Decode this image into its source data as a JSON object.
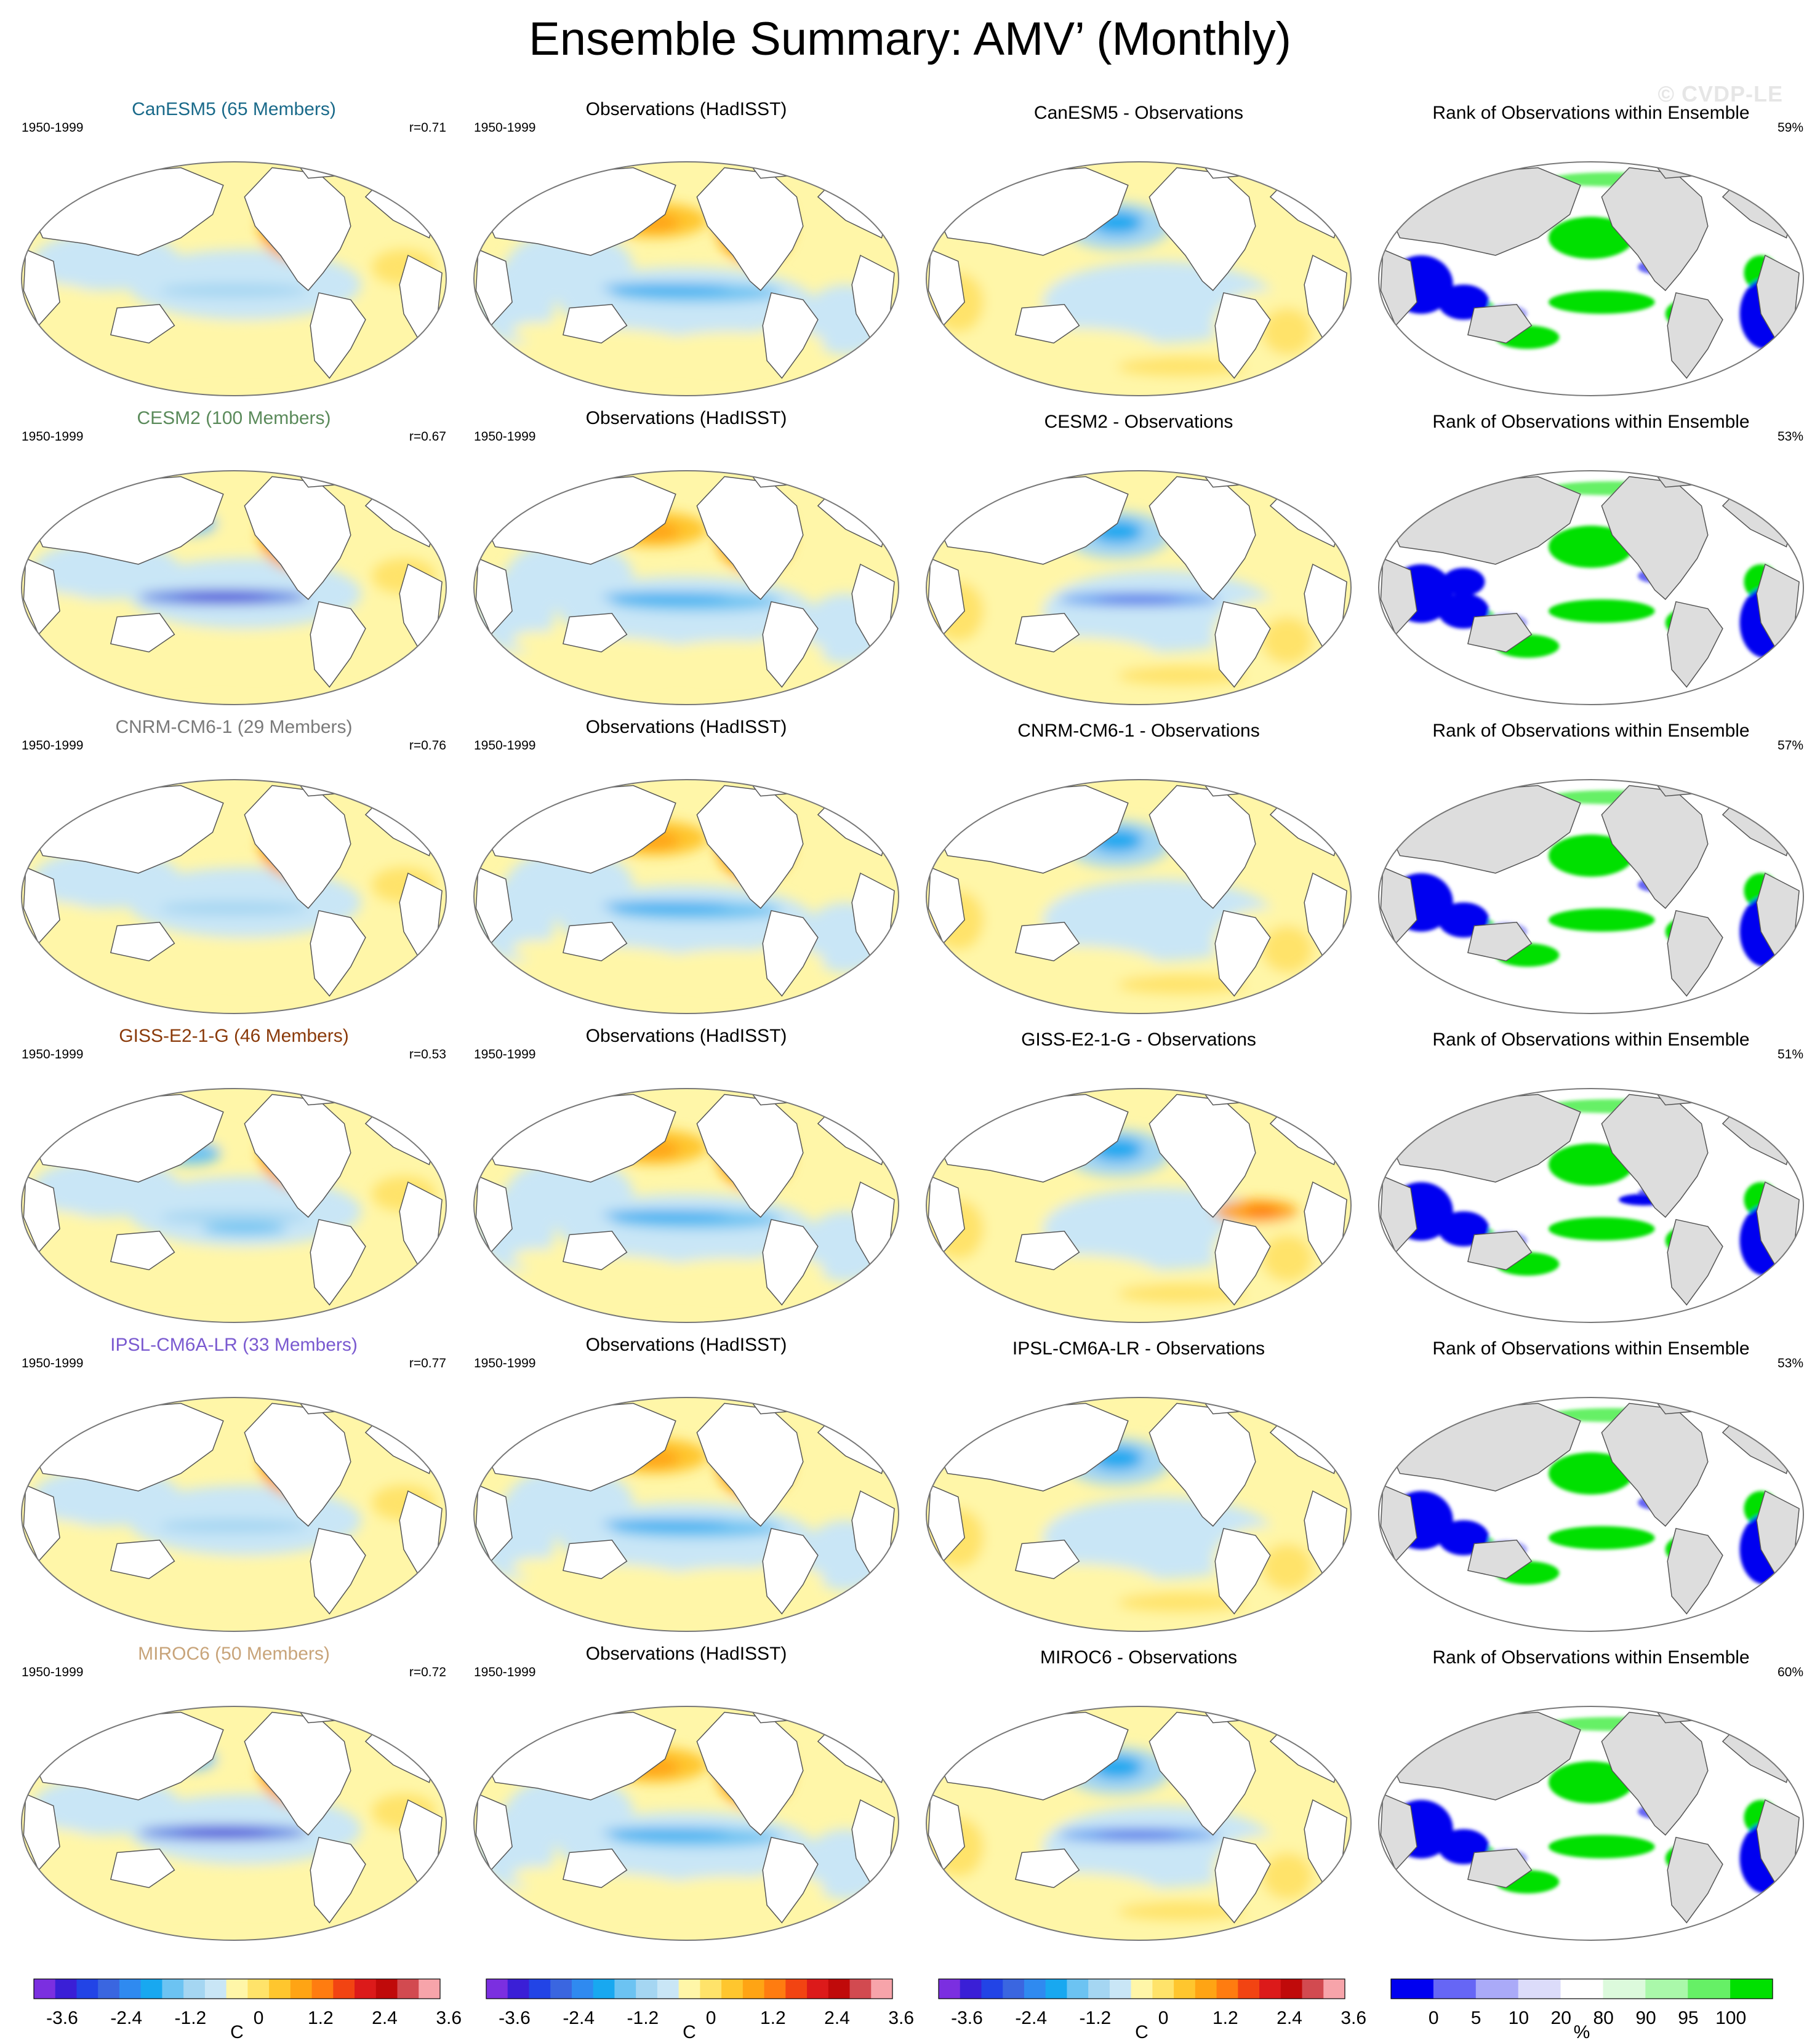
{
  "title": "Ensemble Summary: AMV’ (Monthly)",
  "watermark": "© CVDP-LE",
  "colors": {
    "temp_scale": [
      "#7b2fe0",
      "#3a1fd6",
      "#2244e6",
      "#3a66e0",
      "#2f8af0",
      "#18a8f0",
      "#6cc3f2",
      "#a5d6f2",
      "#c9e6f6",
      "#fff6a8",
      "#ffe36a",
      "#ffc62e",
      "#ffa414",
      "#ff7c10",
      "#f24412",
      "#dc1a1a",
      "#c00a0a",
      "#d24a50",
      "#f7a4aa"
    ],
    "rank_scale": [
      "#0000f0",
      "#6666f5",
      "#aaaaf8",
      "#dcdcfa",
      "#ffffff",
      "#dcfadc",
      "#aaf8aa",
      "#66f066",
      "#00e000"
    ],
    "land_fill": "#dddddd",
    "coast_line": "#555555"
  },
  "rows": [
    {
      "model": {
        "title": "CanESM5 (65 Members)",
        "title_color": "#1a6a8a",
        "period": "1950-1999",
        "stat": "r=0.71"
      },
      "obs": {
        "title": "Observations (HadISST)",
        "period": "1950-1999"
      },
      "diff": {
        "title": "CanESM5 - Observations"
      },
      "rank": {
        "title": "Rank of Observations within Ensemble",
        "stat": "59%"
      }
    },
    {
      "model": {
        "title": "CESM2 (100 Members)",
        "title_color": "#5a8a5a",
        "period": "1950-1999",
        "stat": "r=0.67"
      },
      "obs": {
        "title": "Observations (HadISST)",
        "period": "1950-1999"
      },
      "diff": {
        "title": "CESM2 - Observations"
      },
      "rank": {
        "title": "Rank of Observations within Ensemble",
        "stat": "53%"
      }
    },
    {
      "model": {
        "title": "CNRM-CM6-1 (29 Members)",
        "title_color": "#7a7a7a",
        "period": "1950-1999",
        "stat": "r=0.76"
      },
      "obs": {
        "title": "Observations (HadISST)",
        "period": "1950-1999"
      },
      "diff": {
        "title": "CNRM-CM6-1 - Observations"
      },
      "rank": {
        "title": "Rank of Observations within Ensemble",
        "stat": "57%"
      }
    },
    {
      "model": {
        "title": "GISS-E2-1-G (46 Members)",
        "title_color": "#8a3a0a",
        "period": "1950-1999",
        "stat": "r=0.53"
      },
      "obs": {
        "title": "Observations (HadISST)",
        "period": "1950-1999"
      },
      "diff": {
        "title": "GISS-E2-1-G - Observations"
      },
      "rank": {
        "title": "Rank of Observations within Ensemble",
        "stat": "51%"
      }
    },
    {
      "model": {
        "title": "IPSL-CM6A-LR (33 Members)",
        "title_color": "#7a5ad0",
        "period": "1950-1999",
        "stat": "r=0.77"
      },
      "obs": {
        "title": "Observations (HadISST)",
        "period": "1950-1999"
      },
      "diff": {
        "title": "IPSL-CM6A-LR - Observations"
      },
      "rank": {
        "title": "Rank of Observations within Ensemble",
        "stat": "53%"
      }
    },
    {
      "model": {
        "title": "MIROC6 (50 Members)",
        "title_color": "#c8a47a",
        "period": "1950-1999",
        "stat": "r=0.72"
      },
      "obs": {
        "title": "Observations (HadISST)",
        "period": "1950-1999"
      },
      "diff": {
        "title": "MIROC6 - Observations"
      },
      "rank": {
        "title": "Rank of Observations within Ensemble",
        "stat": "60%"
      }
    }
  ],
  "colorbars": {
    "temperature": {
      "labels": [
        "-3.6",
        "-2.4",
        "-1.2",
        "0",
        "1.2",
        "2.4",
        "3.6"
      ],
      "unit": "C"
    },
    "rank": {
      "labels": [
        "0",
        "5",
        "10",
        "20",
        "80",
        "90",
        "95",
        "100"
      ],
      "unit": "%"
    }
  }
}
